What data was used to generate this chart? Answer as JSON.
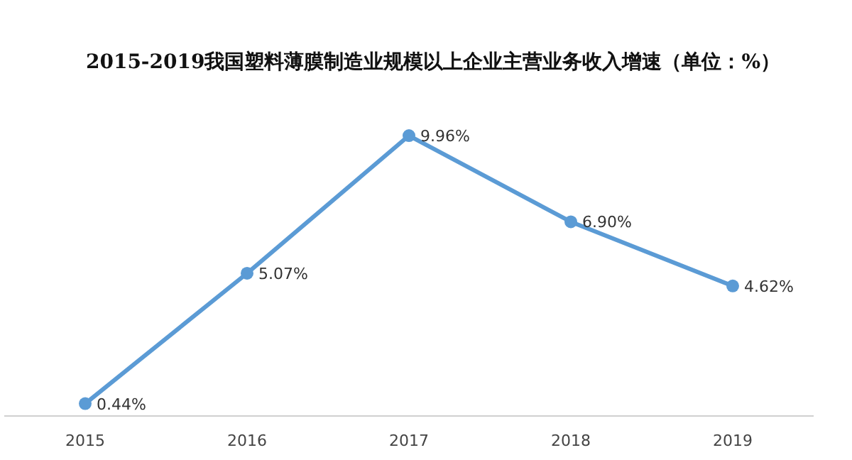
{
  "chart_data": {
    "type": "line",
    "title": "2015-2019我国塑料薄膜制造业规模以上企业主营业务收入增速（单位：%）",
    "categories": [
      "2015",
      "2016",
      "2017",
      "2018",
      "2019"
    ],
    "series": [
      {
        "color": "#5b9bd5",
        "values": [
          0.44,
          5.07,
          9.96,
          6.9,
          4.62
        ],
        "value_labels": [
          "0.44%",
          "5.07%",
          "9.96%",
          "6.90%",
          "4.62%"
        ]
      }
    ],
    "marker": "circle",
    "tick_labels": "x"
  }
}
